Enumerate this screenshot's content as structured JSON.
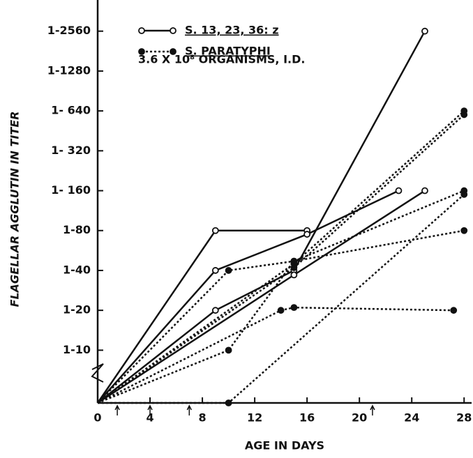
{
  "chart_data": {
    "type": "line",
    "x_label": "AGE IN DAYS",
    "y_label": "FLAGELLAR AGGLUTIN IN TITER",
    "annotation": "3.6 X 10⁸ ORGANISMS, I.D.",
    "log_y": true,
    "xlim": [
      0,
      29
    ],
    "xticks": [
      0,
      4,
      8,
      12,
      16,
      20,
      24,
      28
    ],
    "ylim": [
      4,
      4400
    ],
    "yticks": [
      {
        "value": 10,
        "label": "1-10"
      },
      {
        "value": 20,
        "label": "1-20"
      },
      {
        "value": 40,
        "label": "1-40"
      },
      {
        "value": 80,
        "label": "1-80"
      },
      {
        "value": 160,
        "label": "1- 160"
      },
      {
        "value": 320,
        "label": "1- 320"
      },
      {
        "value": 640,
        "label": "1- 640"
      },
      {
        "value": 1280,
        "label": "1-1280"
      },
      {
        "value": 2560,
        "label": "1-2560"
      }
    ],
    "injection_days": [
      1.5,
      4,
      7,
      21
    ],
    "series": [
      {
        "name": "S. 13, 23, 36: z",
        "color": "#111111",
        "dashed": false,
        "marker": "open",
        "lines": [
          {
            "x": [
              0,
              9,
              16
            ],
            "values": [
              4,
              80,
              80
            ]
          },
          {
            "x": [
              0,
              9,
              16,
              23
            ],
            "values": [
              4,
              40,
              75,
              160
            ]
          },
          {
            "x": [
              0,
              9,
              15,
              25
            ],
            "values": [
              4,
              20,
              40,
              2560
            ]
          },
          {
            "x": [
              0,
              15,
              25
            ],
            "values": [
              4,
              37,
              160
            ]
          }
        ]
      },
      {
        "name": "S. PARATYPHI",
        "color": "#111111",
        "dashed": true,
        "marker": "filled",
        "lines": [
          {
            "x": [
              0,
              10,
              15,
              28
            ],
            "values": [
              4,
              40,
              47,
              80
            ]
          },
          {
            "x": [
              0,
              15,
              28
            ],
            "values": [
              4,
              45,
              640
            ]
          },
          {
            "x": [
              0,
              15,
              28
            ],
            "values": [
              4,
              42,
              600
            ]
          },
          {
            "x": [
              0,
              10,
              15,
              28
            ],
            "values": [
              4,
              10,
              47,
              160
            ]
          },
          {
            "x": [
              0,
              14,
              15,
              27.2
            ],
            "values": [
              4,
              20,
              21,
              20
            ]
          },
          {
            "x": [
              0,
              10,
              28
            ],
            "values": [
              4,
              4,
              150
            ]
          }
        ]
      }
    ]
  }
}
